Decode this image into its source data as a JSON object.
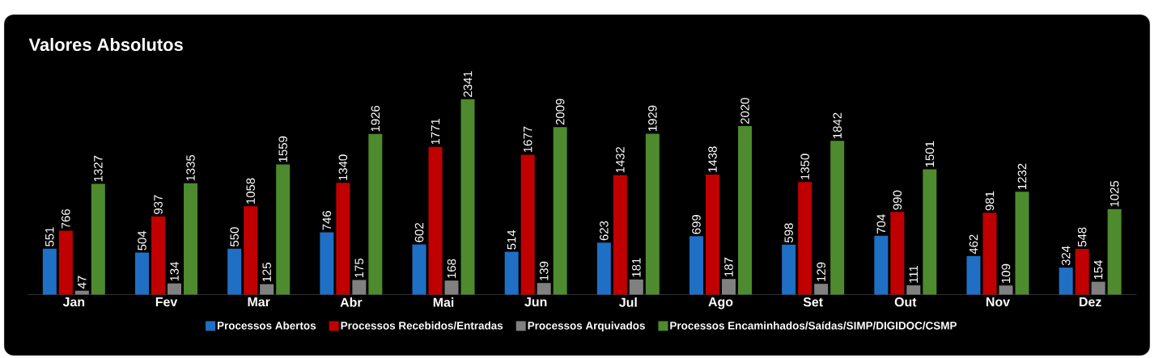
{
  "chart_data": {
    "type": "bar",
    "title": "Valores Absolutos",
    "categories": [
      "Jan",
      "Fev",
      "Mar",
      "Abr",
      "Mai",
      "Jun",
      "Jul",
      "Ago",
      "Set",
      "Out",
      "Nov",
      "Dez"
    ],
    "series": [
      {
        "name": "Processos Abertos",
        "color": "#1f6fc5",
        "values": [
          551,
          504,
          550,
          746,
          602,
          514,
          623,
          699,
          598,
          704,
          462,
          324
        ]
      },
      {
        "name": "Processos Recebidos/Entradas",
        "color": "#c00000",
        "values": [
          766,
          937,
          1058,
          1340,
          1771,
          1677,
          1432,
          1438,
          1350,
          990,
          981,
          548
        ]
      },
      {
        "name": "Processos Arquivados",
        "color": "#808080",
        "values": [
          47,
          134,
          125,
          175,
          168,
          139,
          181,
          187,
          129,
          111,
          109,
          154
        ]
      },
      {
        "name": "Processos Encaminhados/Saídas/SIMP/DIGIDOC/CSMP",
        "color": "#4e8a2e",
        "values": [
          1327,
          1335,
          1559,
          1926,
          2341,
          2009,
          1929,
          2020,
          1842,
          1501,
          1232,
          1025
        ]
      }
    ],
    "data_labels": true,
    "legend": "bottom"
  }
}
